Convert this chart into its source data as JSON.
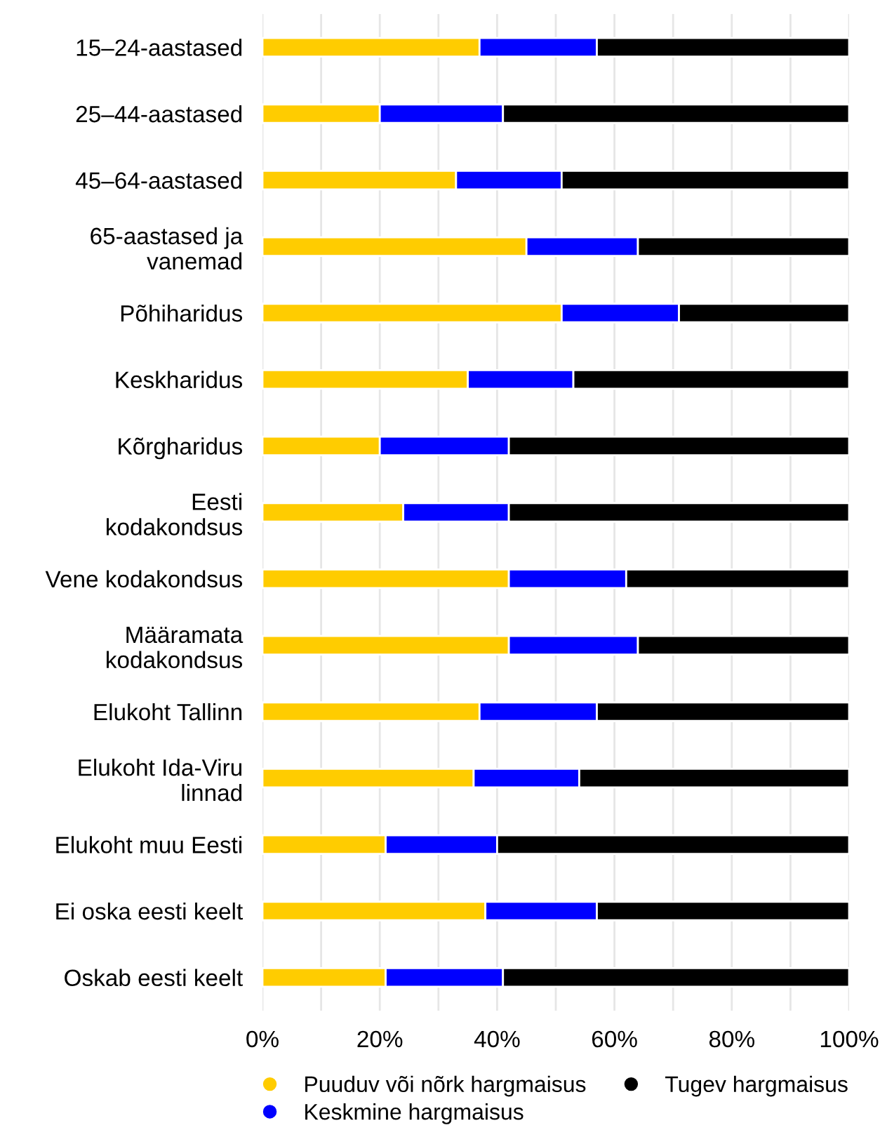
{
  "chart_data": {
    "type": "bar",
    "orientation": "horizontal",
    "stacked": true,
    "categories": [
      "15–24-aastased",
      "25–44-aastased",
      "45–64-aastased",
      "65-aastased ja\nvanemad",
      "Põhiharidus",
      "Keskharidus",
      "Kõrgharidus",
      "Eesti\nkodakondsus",
      "Vene kodakondsus",
      "Määramata\nkodakondsus",
      "Elukoht Tallinn",
      "Elukoht Ida-Viru\nlinnad",
      "Elukoht muu Eesti",
      "Ei oska eesti keelt",
      "Oskab eesti keelt"
    ],
    "series": [
      {
        "name": "Puuduv või nõrk hargmaisus",
        "color": "#ffcc00",
        "values": [
          37,
          20,
          33,
          45,
          51,
          35,
          20,
          24,
          42,
          42,
          37,
          36,
          21,
          38,
          21
        ]
      },
      {
        "name": "Keskmine hargmaisus",
        "color": "#0000ff",
        "values": [
          20,
          21,
          18,
          19,
          20,
          18,
          22,
          18,
          20,
          22,
          20,
          18,
          19,
          19,
          20
        ]
      },
      {
        "name": "Tugev hargmaisus",
        "color": "#000000",
        "values": [
          43,
          59,
          49,
          36,
          29,
          47,
          58,
          58,
          38,
          36,
          43,
          46,
          60,
          43,
          59
        ]
      }
    ],
    "xlim": [
      0,
      100
    ],
    "xticks": [
      {
        "value": 0,
        "label": "0%"
      },
      {
        "value": 10,
        "label": null
      },
      {
        "value": 20,
        "label": "20%"
      },
      {
        "value": 30,
        "label": null
      },
      {
        "value": 40,
        "label": "40%"
      },
      {
        "value": 50,
        "label": null
      },
      {
        "value": 60,
        "label": "60%"
      },
      {
        "value": 70,
        "label": null
      },
      {
        "value": 80,
        "label": "80%"
      },
      {
        "value": 90,
        "label": null
      },
      {
        "value": 100,
        "label": "100%"
      }
    ],
    "grid": "x",
    "legend": "bottom",
    "marker": "circle"
  }
}
